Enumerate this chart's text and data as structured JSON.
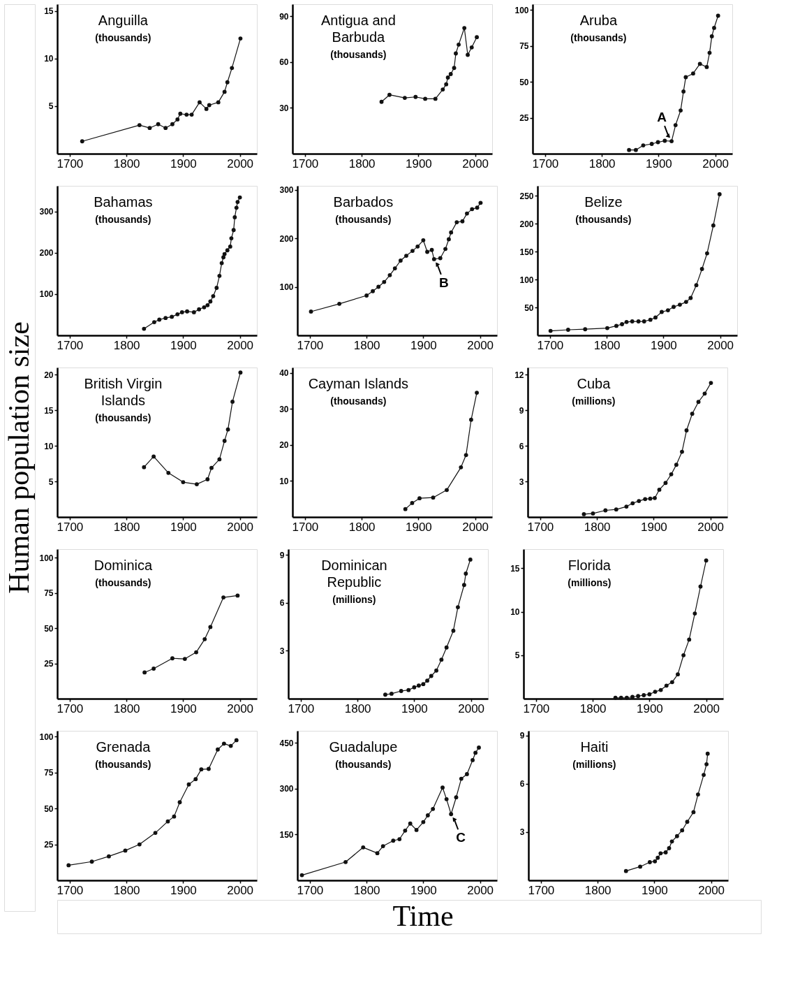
{
  "chart_data": [
    {
      "type": "line",
      "title": "Anguilla",
      "subtitle": "(thousands)",
      "x": [
        1722,
        1823,
        1841,
        1856,
        1869,
        1881,
        1890,
        1895,
        1906,
        1915,
        1929,
        1941,
        1946,
        1962,
        1973,
        1978,
        1986,
        2001
      ],
      "series": [
        {
          "color": "#111111",
          "values": [
            1.3,
            3.0,
            2.7,
            3.1,
            2.7,
            3.1,
            3.6,
            4.2,
            4.1,
            4.1,
            5.4,
            4.7,
            5.1,
            5.4,
            6.5,
            7.5,
            9.0,
            12.1
          ]
        }
      ],
      "xlim": [
        1678,
        2030
      ],
      "ylim": [
        0,
        15.7
      ],
      "xticks": [
        1700,
        1800,
        1900,
        2000
      ],
      "yticks": [
        5,
        10,
        15
      ],
      "marker": "circle",
      "line_style": "solid"
    },
    {
      "type": "line",
      "title": "Antigua and Barbuda",
      "subtitle": "(thousands)",
      "x": [
        1835,
        1849,
        1876,
        1895,
        1912,
        1930,
        1943,
        1949,
        1952,
        1957,
        1963,
        1966,
        1971,
        1981,
        1987,
        1994,
        2003
      ],
      "series": [
        {
          "color": "#111111",
          "values": [
            34.0,
            38.6,
            36.6,
            37.2,
            36.0,
            36.0,
            42.1,
            45.5,
            49.9,
            52.2,
            56.2,
            65.7,
            71.5,
            82.4,
            64.8,
            69.7,
            76.4
          ]
        }
      ],
      "xlim": [
        1678,
        2030
      ],
      "ylim": [
        0,
        98
      ],
      "xticks": [
        1700,
        1800,
        1900,
        2000
      ],
      "yticks": [
        30,
        60,
        90
      ],
      "marker": "circle",
      "line_style": "solid"
    },
    {
      "type": "line",
      "title": "Aruba",
      "subtitle": "(thousands)",
      "x": [
        1848,
        1860,
        1873,
        1888,
        1899,
        1911,
        1923,
        1930,
        1939,
        1944,
        1948,
        1961,
        1973,
        1985,
        1990,
        1994,
        1998,
        2005
      ],
      "series": [
        {
          "color": "#111111",
          "values": [
            2.6,
            2.6,
            5.8,
            6.8,
            8.0,
            9.0,
            8.7,
            19.9,
            30.1,
            43.3,
            53.2,
            55.8,
            62.5,
            60.3,
            70.2,
            81.7,
            87.5,
            96
          ]
        }
      ],
      "xlim": [
        1678,
        2030
      ],
      "ylim": [
        0,
        104
      ],
      "xticks": [
        1700,
        1800,
        1900,
        2000
      ],
      "yticks": [
        25,
        50,
        75,
        100
      ],
      "marker": "circle",
      "line_style": "solid",
      "annotations": [
        {
          "text": "A",
          "x": 1923,
          "y": 8.7
        }
      ]
    },
    {
      "type": "line",
      "title": "Bahamas",
      "subtitle": "(thousands)",
      "x": [
        1831,
        1849,
        1858,
        1869,
        1880,
        1890,
        1898,
        1907,
        1919,
        1928,
        1937,
        1943,
        1948,
        1953,
        1959,
        1964,
        1968,
        1971,
        1973,
        1978,
        1983,
        1985,
        1989,
        1991,
        1994,
        1996,
        2000
      ],
      "series": [
        {
          "color": "#111111",
          "values": [
            16,
            32,
            38,
            42,
            45,
            51,
            56,
            58,
            56,
            63,
            68,
            73,
            82,
            95,
            115,
            144,
            175,
            189,
            197,
            206,
            215,
            235,
            255,
            286,
            309,
            323,
            334
          ]
        }
      ],
      "xlim": [
        1678,
        2030
      ],
      "ylim": [
        0,
        362
      ],
      "xticks": [
        1700,
        1800,
        1900,
        2000
      ],
      "yticks": [
        100,
        200,
        300
      ],
      "marker": "circle",
      "line_style": "solid"
    },
    {
      "type": "line",
      "title": "Barbados",
      "subtitle": "(thousands)",
      "x": [
        1702,
        1752,
        1800,
        1811,
        1821,
        1831,
        1841,
        1850,
        1860,
        1870,
        1881,
        1890,
        1900,
        1907,
        1915,
        1919,
        1930,
        1939,
        1945,
        1949,
        1959,
        1969,
        1977,
        1986,
        1995,
        2001
      ],
      "series": [
        {
          "color": "#111111",
          "values": [
            49,
            65,
            82,
            91,
            100,
            110,
            124,
            138,
            154,
            164,
            174,
            183,
            196,
            172,
            176,
            157,
            159,
            178,
            198,
            212,
            233,
            235,
            251,
            260,
            263,
            273
          ]
        }
      ],
      "xlim": [
        1678,
        2030
      ],
      "ylim": [
        0,
        308
      ],
      "xticks": [
        1700,
        1800,
        1900,
        2000
      ],
      "yticks": [
        100,
        200,
        300
      ],
      "marker": "circle",
      "line_style": "solid",
      "annotations": [
        {
          "text": "B",
          "x": 1919,
          "y": 157
        }
      ]
    },
    {
      "type": "line",
      "title": "Belize",
      "subtitle": "(thousands)",
      "x": [
        1701,
        1732,
        1762,
        1801,
        1817,
        1827,
        1835,
        1845,
        1856,
        1866,
        1877,
        1886,
        1897,
        1908,
        1918,
        1929,
        1940,
        1948,
        1958,
        1968,
        1977,
        1988,
        1999
      ],
      "series": [
        {
          "color": "#111111",
          "values": [
            8,
            10,
            11,
            13,
            17,
            20,
            24,
            25,
            25,
            25,
            28,
            32,
            42,
            45,
            51,
            55,
            60,
            67,
            90,
            119,
            147,
            197,
            253
          ]
        }
      ],
      "xlim": [
        1678,
        2030
      ],
      "ylim": [
        0,
        268
      ],
      "xticks": [
        1700,
        1800,
        1900,
        2000
      ],
      "yticks": [
        50,
        100,
        150,
        200,
        250
      ],
      "marker": "circle",
      "line_style": "solid"
    },
    {
      "type": "line",
      "title": "British Virgin Islands",
      "subtitle": "(thousands)",
      "ylabel": "Human population size",
      "x": [
        1831,
        1848,
        1874,
        1900,
        1924,
        1943,
        1950,
        1964,
        1973,
        1979,
        1987,
        2001
      ],
      "series": [
        {
          "color": "#111111",
          "values": [
            7.0,
            8.5,
            6.2,
            4.9,
            4.6,
            5.3,
            6.9,
            8.1,
            10.7,
            12.3,
            16.2,
            20.3
          ]
        }
      ],
      "xlim": [
        1678,
        2030
      ],
      "ylim": [
        0,
        21
      ],
      "xticks": [
        1700,
        1800,
        1900,
        2000
      ],
      "yticks": [
        5,
        10,
        15,
        20
      ],
      "marker": "circle",
      "line_style": "solid"
    },
    {
      "type": "line",
      "title": "Cayman Islands",
      "subtitle": "(thousands)",
      "x": [
        1877,
        1889,
        1902,
        1926,
        1950,
        1975,
        1984,
        1993,
        2003
      ],
      "series": [
        {
          "color": "#111111",
          "values": [
            2.2,
            3.9,
            5.2,
            5.4,
            7.5,
            13.8,
            17.2,
            27.0,
            34.5
          ]
        }
      ],
      "xlim": [
        1678,
        2030
      ],
      "ylim": [
        0,
        41.5
      ],
      "xticks": [
        1700,
        1800,
        1900,
        2000
      ],
      "yticks": [
        10,
        20,
        30,
        40
      ],
      "marker": "circle",
      "line_style": "solid"
    },
    {
      "type": "line",
      "title": "Cuba",
      "subtitle": "(millions)",
      "x": [
        1777,
        1793,
        1815,
        1834,
        1852,
        1863,
        1874,
        1885,
        1894,
        1902,
        1910,
        1921,
        1931,
        1940,
        1950,
        1958,
        1968,
        1979,
        1990,
        2001
      ],
      "series": [
        {
          "color": "#111111",
          "values": [
            0.24,
            0.3,
            0.56,
            0.64,
            0.88,
            1.16,
            1.35,
            1.51,
            1.55,
            1.6,
            2.3,
            2.87,
            3.6,
            4.4,
            5.5,
            7.3,
            8.7,
            9.7,
            10.4,
            11.3
          ]
        }
      ],
      "xlim": [
        1678,
        2030
      ],
      "ylim": [
        0,
        12.6
      ],
      "xticks": [
        1700,
        1800,
        1900,
        2000
      ],
      "yticks": [
        3,
        6,
        9,
        12
      ],
      "marker": "circle",
      "line_style": "solid"
    },
    {
      "type": "line",
      "title": "Dominica",
      "subtitle": "(thousands)",
      "x": [
        1832,
        1848,
        1881,
        1903,
        1923,
        1938,
        1948,
        1971,
        1996
      ],
      "series": [
        {
          "color": "#111111",
          "values": [
            18.6,
            21.3,
            28.6,
            28.2,
            32.9,
            42.2,
            50.8,
            71.8,
            73.1
          ]
        }
      ],
      "xlim": [
        1678,
        2030
      ],
      "ylim": [
        0,
        106
      ],
      "xticks": [
        1700,
        1800,
        1900,
        2000
      ],
      "yticks": [
        25,
        50,
        75,
        100
      ],
      "marker": "circle",
      "line_style": "solid"
    },
    {
      "type": "line",
      "title": "Dominican Republic",
      "subtitle": "(millions)",
      "x": [
        1849,
        1860,
        1877,
        1890,
        1900,
        1908,
        1916,
        1923,
        1930,
        1939,
        1948,
        1957,
        1969,
        1977,
        1988,
        1991,
        1999
      ],
      "series": [
        {
          "color": "#111111",
          "values": [
            0.25,
            0.31,
            0.48,
            0.54,
            0.71,
            0.82,
            0.91,
            1.13,
            1.42,
            1.76,
            2.44,
            3.2,
            4.25,
            5.72,
            7.11,
            7.82,
            8.7
          ]
        }
      ],
      "xlim": [
        1678,
        2030
      ],
      "ylim": [
        0,
        9.35
      ],
      "xticks": [
        1700,
        1800,
        1900,
        2000
      ],
      "yticks": [
        3,
        6,
        9
      ],
      "marker": "circle",
      "line_style": "solid"
    },
    {
      "type": "line",
      "title": "Florida",
      "subtitle": "(millions)",
      "x": [
        1840,
        1850,
        1860,
        1870,
        1880,
        1890,
        1900,
        1910,
        1920,
        1930,
        1940,
        1950,
        1960,
        1970,
        1980,
        1990,
        2000
      ],
      "series": [
        {
          "color": "#111111",
          "values": [
            0.1,
            0.1,
            0.1,
            0.2,
            0.3,
            0.4,
            0.5,
            0.8,
            1.0,
            1.5,
            1.9,
            2.8,
            5.0,
            6.8,
            9.8,
            12.9,
            15.9
          ]
        }
      ],
      "xlim": [
        1678,
        2030
      ],
      "ylim": [
        0,
        17.2
      ],
      "xticks": [
        1700,
        1800,
        1900,
        2000
      ],
      "yticks": [
        5,
        10,
        15
      ],
      "marker": "circle",
      "line_style": "solid"
    },
    {
      "type": "line",
      "title": "Grenada",
      "subtitle": "(thousands)",
      "x": [
        1698,
        1739,
        1769,
        1798,
        1823,
        1851,
        1873,
        1884,
        1894,
        1910,
        1922,
        1932,
        1945,
        1961,
        1972,
        1984,
        1994
      ],
      "series": [
        {
          "color": "#111111",
          "values": [
            10.5,
            13.0,
            16.7,
            20.7,
            25.0,
            33.0,
            41.0,
            44.4,
            54.3,
            66.7,
            70.4,
            77.2,
            77.5,
            91.0,
            95.1,
            93.5,
            97.5
          ]
        }
      ],
      "xlim": [
        1678,
        2030
      ],
      "ylim": [
        0,
        104
      ],
      "xticks": [
        1700,
        1800,
        1900,
        2000
      ],
      "yticks": [
        25,
        50,
        75,
        100
      ],
      "marker": "circle",
      "line_style": "solid"
    },
    {
      "type": "line",
      "title": "Guadalupe",
      "subtitle": "(thousands)",
      "xlabel": "Time",
      "x": [
        1686,
        1763,
        1794,
        1819,
        1829,
        1847,
        1858,
        1868,
        1877,
        1888,
        1900,
        1908,
        1917,
        1934,
        1941,
        1949,
        1958,
        1967,
        1977,
        1987,
        1992,
        1998
      ],
      "series": [
        {
          "color": "#111111",
          "values": [
            17,
            60,
            108,
            89,
            112,
            130,
            135,
            163,
            186,
            165,
            191,
            213,
            234,
            304,
            266,
            217,
            272,
            333,
            348,
            394,
            418,
            435
          ]
        }
      ],
      "xlim": [
        1678,
        2030
      ],
      "ylim": [
        0,
        490
      ],
      "xticks": [
        1700,
        1800,
        1900,
        2000
      ],
      "yticks": [
        150,
        300,
        450
      ],
      "marker": "circle",
      "line_style": "solid",
      "annotations": [
        {
          "text": "C",
          "x": 1949,
          "y": 217
        }
      ]
    },
    {
      "type": "line",
      "title": "Haiti",
      "subtitle": "(millions)",
      "x": [
        1850,
        1875,
        1892,
        1901,
        1906,
        1911,
        1920,
        1926,
        1931,
        1940,
        1949,
        1958,
        1969,
        1977,
        1987,
        1992,
        1994
      ],
      "series": [
        {
          "color": "#111111",
          "values": [
            0.58,
            0.85,
            1.13,
            1.18,
            1.4,
            1.68,
            1.74,
            2.0,
            2.42,
            2.75,
            3.11,
            3.64,
            4.24,
            5.34,
            6.56,
            7.22,
            7.88
          ]
        }
      ],
      "xlim": [
        1678,
        2030
      ],
      "ylim": [
        0,
        9.3
      ],
      "xticks": [
        1700,
        1800,
        1900,
        2000
      ],
      "yticks": [
        3,
        6,
        9
      ],
      "marker": "circle",
      "line_style": "solid"
    }
  ]
}
